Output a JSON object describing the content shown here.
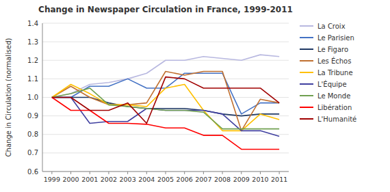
{
  "chart_data": {
    "type": "line",
    "title": "Change in Newspaper Circulation in France, 1999-2011",
    "ylabel": "Change in Circulation (normalised)",
    "x": [
      1999,
      2000,
      2001,
      2002,
      2003,
      2004,
      2005,
      2006,
      2007,
      2008,
      2009,
      2010,
      2011
    ],
    "xlim": [
      1998.5,
      2011.5
    ],
    "xticks": [
      1999,
      2000,
      2001,
      2002,
      2003,
      2004,
      2005,
      2006,
      2007,
      2008,
      2009,
      2010,
      2011
    ],
    "ylim": [
      0.6,
      1.4
    ],
    "yticks": [
      0.6,
      0.7,
      0.8,
      0.9,
      {
        "value": 1,
        "label": "1.0"
      },
      1.1,
      1.2,
      1.3,
      1.4
    ],
    "grid": true,
    "legend": "right",
    "series": [
      {
        "name": "La Croix",
        "color": "#b8b8e0",
        "values": [
          1.0,
          1.02,
          1.07,
          1.08,
          1.1,
          1.13,
          1.2,
          1.2,
          1.22,
          1.21,
          1.2,
          1.23,
          1.22
        ]
      },
      {
        "name": "Le Parisien",
        "color": "#4472c4",
        "values": [
          1.0,
          1.0,
          1.06,
          1.06,
          1.1,
          1.05,
          1.05,
          1.13,
          1.13,
          1.13,
          0.91,
          0.97,
          0.97
        ]
      },
      {
        "name": "Le Figaro",
        "color": "#1f3864",
        "values": [
          1.0,
          1.0,
          1.0,
          0.97,
          0.95,
          0.94,
          0.94,
          0.94,
          0.93,
          0.91,
          0.9,
          0.91,
          0.91
        ]
      },
      {
        "name": "Les Échos",
        "color": "#c07030",
        "values": [
          1.0,
          1.06,
          1.0,
          0.96,
          0.96,
          0.97,
          1.14,
          1.12,
          1.14,
          1.14,
          0.82,
          0.99,
          0.97
        ]
      },
      {
        "name": "La Tribune",
        "color": "#ffc000",
        "values": [
          1.0,
          1.07,
          1.02,
          0.96,
          0.96,
          0.95,
          1.05,
          1.07,
          0.93,
          0.82,
          0.82,
          0.91,
          0.88
        ]
      },
      {
        "name": "L'Équipe",
        "color": "#4040a0",
        "values": [
          1.0,
          1.0,
          0.86,
          0.87,
          0.87,
          0.94,
          0.93,
          0.93,
          0.93,
          0.91,
          0.82,
          0.82,
          0.79
        ]
      },
      {
        "name": "Le Monde",
        "color": "#70a050",
        "values": [
          1.0,
          1.02,
          1.05,
          0.96,
          0.95,
          0.94,
          0.93,
          0.93,
          0.92,
          0.83,
          0.83,
          0.83,
          0.83
        ]
      },
      {
        "name": "Libération",
        "color": "#ff0000",
        "values": [
          1.0,
          0.93,
          0.93,
          0.86,
          0.86,
          0.855,
          0.835,
          0.835,
          0.795,
          0.795,
          0.72,
          0.72,
          0.72
        ]
      },
      {
        "name": "L'Humanité",
        "color": "#a00000",
        "values": [
          1.0,
          1.0,
          0.93,
          0.93,
          0.97,
          0.86,
          1.11,
          1.1,
          1.05,
          1.05,
          1.05,
          1.05,
          0.97
        ]
      }
    ]
  }
}
